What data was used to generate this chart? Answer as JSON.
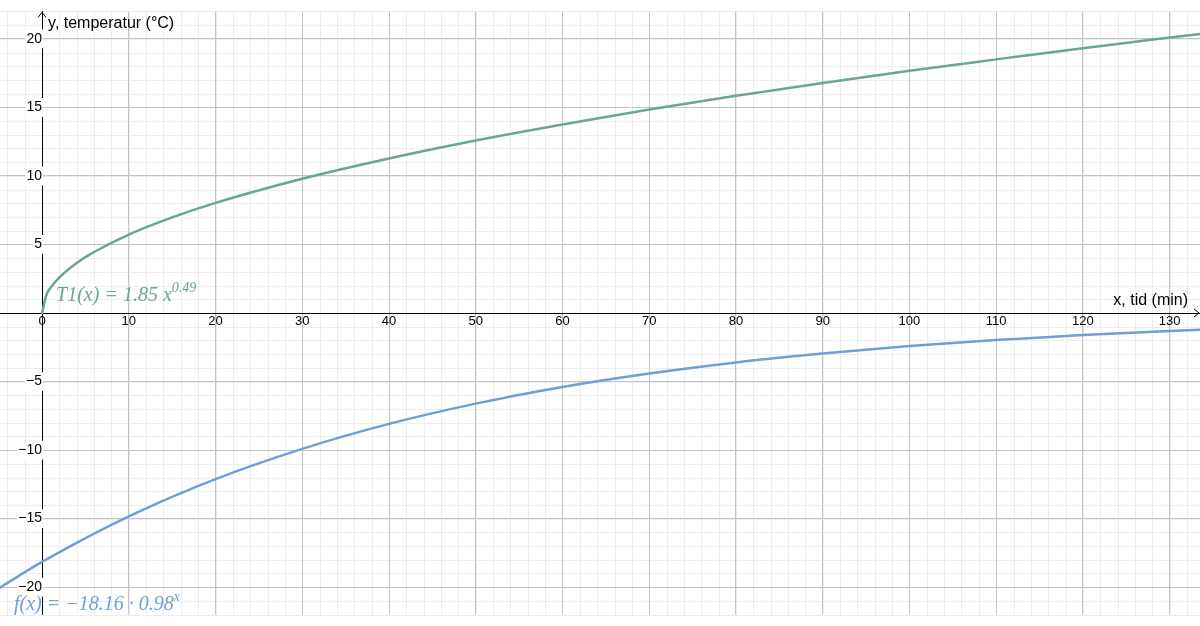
{
  "chart_data": {
    "type": "line",
    "xlabel": "x, tid (min)",
    "ylabel": "y, temperatur (°C)",
    "xlim": [
      -4.85,
      133.5
    ],
    "ylim": [
      -22,
      22
    ],
    "xticks": [
      0,
      10,
      20,
      30,
      40,
      50,
      60,
      70,
      80,
      90,
      100,
      110,
      120,
      130
    ],
    "yticks": [
      -20,
      -15,
      -10,
      -5,
      5,
      10,
      15,
      20
    ],
    "grid": true,
    "legend": false,
    "marker": "none",
    "line_style": "solid",
    "series": [
      {
        "name": "T1(x) = 1.85 x$^{0.49}$",
        "color": "#6aa88a",
        "x": [
          0,
          0.5,
          1,
          2,
          4,
          6,
          10,
          15,
          20,
          30,
          40,
          50,
          60,
          70,
          80,
          90,
          100,
          110,
          120,
          130,
          133.5
        ],
        "values": [
          0,
          1.32,
          1.85,
          2.6,
          3.65,
          4.45,
          5.72,
          6.97,
          8.03,
          9.79,
          11.27,
          12.58,
          13.75,
          14.84,
          15.84,
          16.78,
          17.67,
          18.5,
          19.32,
          20.09,
          20.35
        ]
      },
      {
        "name": "f(x) = −18.16 · 0.98$^{x}$",
        "color": "#6f9fd6",
        "x": [
          -4.85,
          0,
          10,
          20,
          30,
          40,
          50,
          60,
          70,
          80,
          90,
          100,
          110,
          120,
          130,
          133.5
        ],
        "values": [
          -20.03,
          -18.16,
          -14.84,
          -12.12,
          -9.91,
          -8.09,
          -6.61,
          -5.4,
          -4.42,
          -3.61,
          -2.95,
          -2.41,
          -1.97,
          -1.61,
          -1.31,
          -1.22
        ]
      }
    ]
  }
}
